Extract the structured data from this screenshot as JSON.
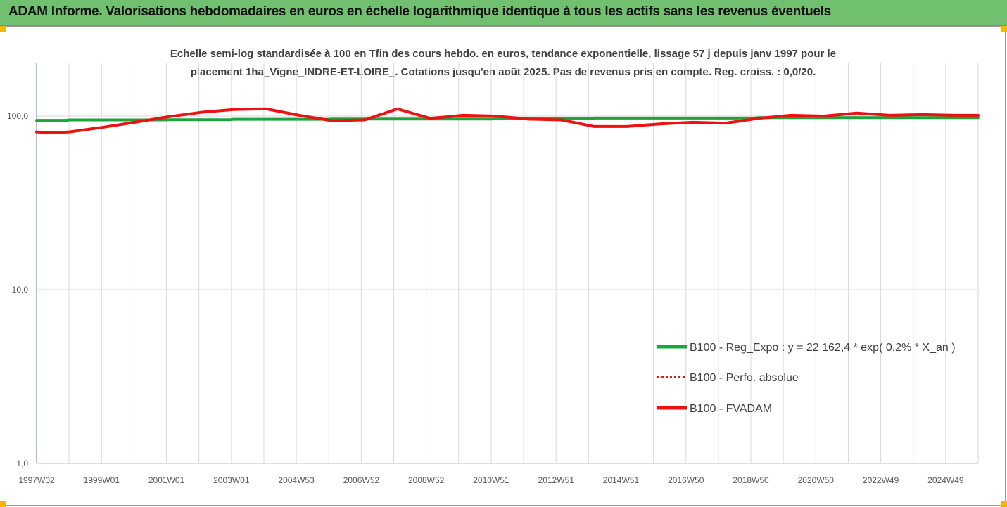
{
  "banner": {
    "title": "ADAM Informe. Valorisations hebdomadaires en euros en échelle logarithmique identique à tous les actifs sans les revenus éventuels"
  },
  "colors": {
    "banner_bg": "#70c070",
    "reg_line": "#1fa33c",
    "fvadam_line": "#ee1111",
    "perfo_line": "#ee1111",
    "grid": "#d9d9d9",
    "axis_text": "#595959"
  },
  "chart_data": {
    "type": "line",
    "title_line1": "Echelle semi-log standardisée à 100 en Tfin des cours hebdo. en euros, tendance exponentielle, lissage 57 j depuis janv 1997 pour le",
    "title_line2": "placement 1ha_Vigne_INDRE-ET-LOIRE_. Cotations jusqu'en août 2025. Pas de revenus pris en compte. Reg. croiss. : 0,0/20.",
    "y_scale": "log",
    "ylim": [
      1,
      200
    ],
    "y_ticks": [
      {
        "value": 1,
        "label": "1,0"
      },
      {
        "value": 10,
        "label": "10,0"
      },
      {
        "value": 100,
        "label": "100,0"
      }
    ],
    "x_tick_labels": [
      "1997W02",
      "1999W01",
      "2001W01",
      "2003W01",
      "2004W53",
      "2006W52",
      "2008W52",
      "2010W51",
      "2012W51",
      "2014W51",
      "2016W50",
      "2018W50",
      "2020W50",
      "2022W49",
      "2024W49"
    ],
    "grid": true,
    "legend_position": "right",
    "series": [
      {
        "name": "B100 - Reg_Expo : y = 22 162,4 * exp( 0,2% *  X_an )",
        "style": "solid",
        "color": "#1fa33c",
        "x": [
          1997.0,
          1997.9,
          1998.0,
          2000.9,
          2001.0,
          2002.9,
          2003.0,
          2005.9,
          2006.0,
          2010.9,
          2011.0,
          2013.9,
          2014.0,
          2018.9,
          2019.0,
          2025.7
        ],
        "values": [
          94.5,
          94.5,
          95.0,
          95.0,
          95.3,
          95.3,
          95.8,
          95.8,
          96.2,
          96.2,
          96.7,
          96.7,
          97.3,
          97.3,
          97.9,
          97.9
        ]
      },
      {
        "name": "B100 - Perfo. absolue",
        "style": "dotted",
        "color": "#ee1111",
        "x": [],
        "values": []
      },
      {
        "name": "B100 - FVADAM",
        "style": "solid",
        "color": "#ee1111",
        "x": [
          1997.0,
          1997.4,
          1998.0,
          1999.0,
          2000.0,
          2001.0,
          2002.0,
          2003.0,
          2004.0,
          2005.0,
          2006.0,
          2007.0,
          2008.0,
          2009.0,
          2010.0,
          2011.0,
          2012.0,
          2013.0,
          2014.0,
          2015.0,
          2016.0,
          2017.0,
          2018.0,
          2019.0,
          2020.0,
          2021.0,
          2022.0,
          2023.0,
          2024.0,
          2025.0,
          2025.7
        ],
        "values": [
          81,
          80,
          81,
          86,
          92,
          99,
          105,
          109,
          110,
          101,
          94,
          95,
          110,
          97,
          101,
          100,
          96,
          95,
          87,
          87,
          90,
          92,
          91,
          97,
          101,
          100,
          104,
          101,
          102,
          101,
          101
        ]
      }
    ]
  },
  "legend": {
    "items": [
      {
        "label": "B100 - Reg_Expo : y = 22 162,4 * exp( 0,2% *  X_an )",
        "style": "solid",
        "color": "#1fa33c"
      },
      {
        "label": "B100 - Perfo. absolue",
        "style": "dotted",
        "color": "#ee1111"
      },
      {
        "label": "B100 - FVADAM",
        "style": "solid",
        "color": "#ee1111"
      }
    ]
  }
}
